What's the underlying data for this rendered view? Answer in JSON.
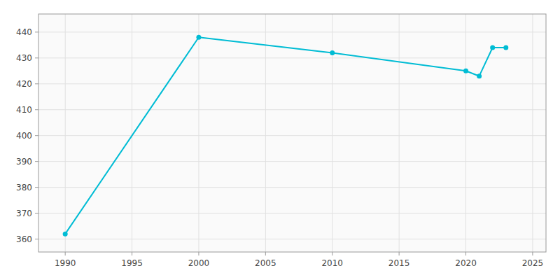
{
  "chart_data": {
    "type": "line",
    "x": [
      1990,
      2000,
      2010,
      2020,
      2021,
      2022,
      2023
    ],
    "values": [
      362,
      438,
      432,
      425,
      423,
      434,
      434
    ],
    "color": "#00bcd4",
    "marker": "circle",
    "xlim": [
      1988,
      2026
    ],
    "ylim": [
      355,
      447
    ],
    "xticks": [
      1990,
      1995,
      2000,
      2005,
      2010,
      2015,
      2020,
      2025
    ],
    "yticks": [
      360,
      370,
      380,
      390,
      400,
      410,
      420,
      430,
      440
    ],
    "grid": true
  }
}
